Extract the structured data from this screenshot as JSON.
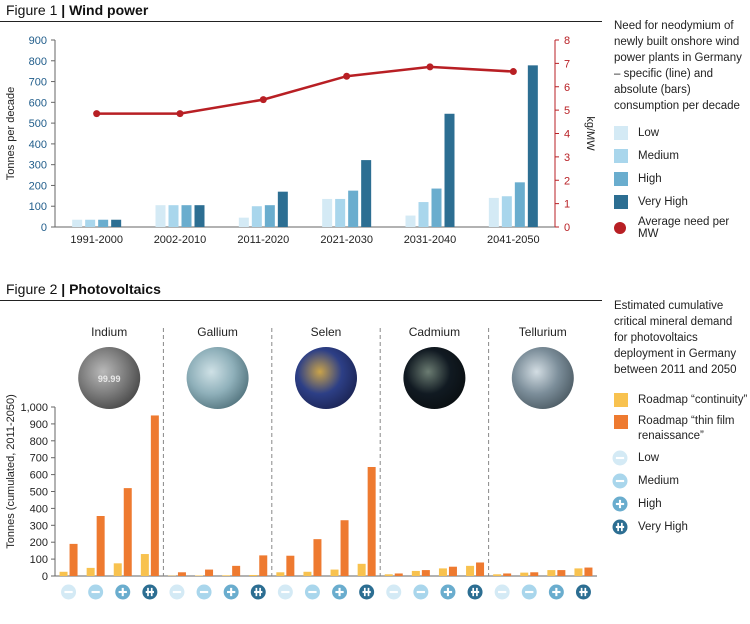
{
  "figure1": {
    "title_prefix": "Figure 1",
    "title_sep": "|",
    "title_main": "Wind power",
    "description": "Need for neodymium of newly built onshore wind power plants in Germany – specific (line) and absolute (bars) consumption per decade",
    "legend": [
      "Low",
      "Medium",
      "High",
      "Very High",
      "Average need per MW"
    ]
  },
  "figure2": {
    "title_prefix": "Figure 2",
    "title_sep": "|",
    "title_main": "Photovoltaics",
    "description": "Estimated cumulative critical mineral demand for photovoltaics deployment in Germany between 2011 and 2050",
    "legend_roadmaps": [
      "Roadmap “continuity”",
      "Roadmap “thin film renaissance”"
    ],
    "legend_levels": [
      "Low",
      "Medium",
      "High",
      "Very High"
    ],
    "photo_watermark": "99.99"
  },
  "colors": {
    "low": "#d4eaf5",
    "medium": "#a9d6ec",
    "high": "#6aadce",
    "very_high": "#2c6e92",
    "line": "#b81f24",
    "continuity": "#f8c24f",
    "thin_film": "#ee7a30"
  },
  "chart_data": [
    {
      "type": "bar",
      "categories": [
        "1991-2000",
        "2002-2010",
        "2011-2020",
        "2021-2030",
        "2031-2040",
        "2041-2050"
      ],
      "series": [
        {
          "name": "Low",
          "values": [
            35,
            105,
            45,
            135,
            55,
            140
          ]
        },
        {
          "name": "Medium",
          "values": [
            35,
            105,
            100,
            135,
            120,
            148
          ]
        },
        {
          "name": "High",
          "values": [
            35,
            105,
            105,
            175,
            185,
            215
          ]
        },
        {
          "name": "Very High",
          "values": [
            35,
            105,
            170,
            322,
            545,
            778
          ]
        }
      ],
      "line_series": {
        "name": "Average need per MW",
        "values": [
          4.85,
          4.85,
          5.45,
          6.45,
          6.85,
          6.65
        ]
      },
      "ylabel": "Tonnes per decade",
      "y2label": "kg/MW",
      "ylim": [
        0,
        900
      ],
      "y2lim": [
        0,
        8
      ],
      "yticks": [
        0,
        100,
        200,
        300,
        400,
        500,
        600,
        700,
        800,
        900
      ],
      "y2ticks": [
        0,
        1,
        2,
        3,
        4,
        5,
        6,
        7,
        8
      ]
    },
    {
      "type": "bar",
      "categories": [
        "Indium",
        "Gallium",
        "Selen",
        "Cadmium",
        "Tellurium"
      ],
      "scenarios": [
        "Low",
        "Medium",
        "High",
        "Very High"
      ],
      "series": [
        {
          "name": "Roadmap “continuity”",
          "values": [
            [
              25,
              48,
              75,
              130
            ],
            [
              2,
              3,
              4,
              6
            ],
            [
              22,
              25,
              38,
              72
            ],
            [
              10,
              30,
              45,
              60
            ],
            [
              10,
              20,
              35,
              45
            ]
          ]
        },
        {
          "name": "Roadmap “thin film renaissance”",
          "values": [
            [
              190,
              355,
              520,
              950
            ],
            [
              22,
              38,
              60,
              122
            ],
            [
              120,
              218,
              330,
              645
            ],
            [
              15,
              35,
              55,
              80
            ],
            [
              15,
              22,
              35,
              50
            ]
          ]
        }
      ],
      "ylabel": "Tonnes (cumulated, 2011-2050)",
      "ylim": [
        0,
        1000
      ],
      "yticks": [
        "0",
        "100",
        "200",
        "300",
        "400",
        "500",
        "600",
        "700",
        "800",
        "900",
        "1,000"
      ]
    }
  ]
}
